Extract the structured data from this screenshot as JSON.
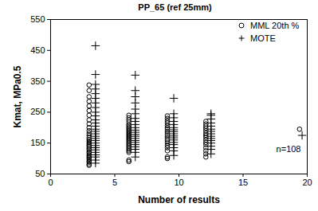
{
  "chart_data": {
    "type": "scatter",
    "title": "PP_65 (ref 25mm)",
    "x_label": "Number of results",
    "y_label": "Kmat, MPa0.5",
    "xlim": [
      0,
      20
    ],
    "xticks": [
      0,
      5,
      10,
      15,
      20
    ],
    "ylim": [
      50,
      550
    ],
    "yticks": [
      50,
      150,
      250,
      350,
      450,
      550
    ],
    "legend": "top-right",
    "annotations": [
      "n=108"
    ],
    "series": [
      {
        "name": "MML 20th %",
        "marker": "circle",
        "color": "#000000",
        "x": [
          3,
          3,
          3,
          3,
          3,
          3,
          3,
          3,
          3,
          3,
          3,
          3,
          3,
          3,
          3,
          3,
          3,
          3,
          3,
          3,
          3,
          3,
          3,
          3,
          3,
          3,
          3,
          3,
          3,
          3,
          3,
          3,
          6.1,
          6.1,
          6.1,
          6.1,
          6.1,
          6.1,
          6.1,
          6.1,
          6.1,
          6.1,
          6.1,
          6.1,
          6.1,
          6.1,
          6.1,
          6.1,
          6.1,
          6.1,
          6.1,
          6.1,
          6.1,
          6.1,
          6.1,
          6.1,
          6.1,
          9.1,
          9.1,
          9.1,
          9.1,
          9.1,
          9.1,
          9.1,
          9.1,
          9.1,
          9.1,
          9.1,
          9.1,
          9.1,
          9.1,
          9.1,
          9.1,
          9.1,
          9.1,
          9.1,
          12.1,
          12.1,
          12.1,
          12.1,
          12.1,
          12.1,
          12.1,
          12.1,
          12.1,
          12.1,
          12.1,
          12.1,
          12.1,
          12.1,
          12.1,
          19.4
        ],
        "values": [
          78,
          82,
          88,
          92,
          98,
          103,
          108,
          112,
          118,
          122,
          128,
          133,
          138,
          142,
          147,
          152,
          157,
          162,
          168,
          175,
          182,
          190,
          200,
          212,
          225,
          240,
          255,
          270,
          285,
          300,
          320,
          338,
          90,
          95,
          120,
          125,
          130,
          135,
          140,
          145,
          150,
          155,
          160,
          165,
          170,
          175,
          180,
          185,
          190,
          195,
          200,
          205,
          210,
          218,
          225,
          232,
          240,
          100,
          105,
          125,
          135,
          142,
          150,
          157,
          163,
          170,
          176,
          182,
          188,
          195,
          200,
          207,
          215,
          222,
          230,
          238,
          105,
          115,
          125,
          135,
          145,
          152,
          160,
          168,
          175,
          182,
          190,
          198,
          205,
          212,
          220,
          195
        ]
      },
      {
        "name": "MOTE",
        "marker": "plus",
        "color": "#000000",
        "x": [
          3.5,
          3.5,
          3.5,
          3.5,
          3.5,
          3.5,
          3.5,
          3.5,
          3.5,
          3.5,
          3.5,
          3.5,
          3.5,
          3.5,
          3.5,
          3.5,
          3.5,
          3.5,
          3.5,
          3.5,
          3.5,
          3.5,
          3.5,
          3.5,
          3.5,
          3.5,
          3.5,
          3.5,
          6.6,
          6.6,
          6.6,
          6.6,
          6.6,
          6.6,
          6.6,
          6.6,
          6.6,
          6.6,
          6.6,
          6.6,
          6.6,
          6.6,
          6.6,
          6.6,
          6.6,
          6.6,
          6.6,
          6.6,
          6.6,
          6.6,
          9.6,
          9.6,
          9.6,
          9.6,
          9.6,
          9.6,
          9.6,
          9.6,
          9.6,
          9.6,
          9.6,
          9.6,
          9.6,
          9.6,
          9.6,
          9.6,
          9.6,
          12.5,
          12.5,
          12.5,
          12.5,
          12.5,
          12.5,
          12.5,
          12.5,
          12.5,
          12.5,
          12.5,
          12.5,
          12.5,
          12.5,
          12.5,
          19.6
        ],
        "values": [
          85,
          95,
          105,
          112,
          120,
          128,
          135,
          142,
          150,
          158,
          165,
          172,
          180,
          188,
          195,
          205,
          215,
          225,
          238,
          250,
          265,
          280,
          295,
          310,
          325,
          340,
          372,
          465,
          105,
          120,
          130,
          138,
          145,
          152,
          158,
          165,
          172,
          178,
          185,
          192,
          200,
          210,
          220,
          230,
          245,
          260,
          280,
          300,
          320,
          370,
          110,
          125,
          135,
          145,
          152,
          160,
          167,
          173,
          180,
          187,
          193,
          200,
          210,
          220,
          232,
          245,
          295,
          115,
          130,
          140,
          150,
          158,
          165,
          172,
          180,
          188,
          195,
          205,
          215,
          228,
          240,
          245,
          175
        ]
      }
    ]
  }
}
